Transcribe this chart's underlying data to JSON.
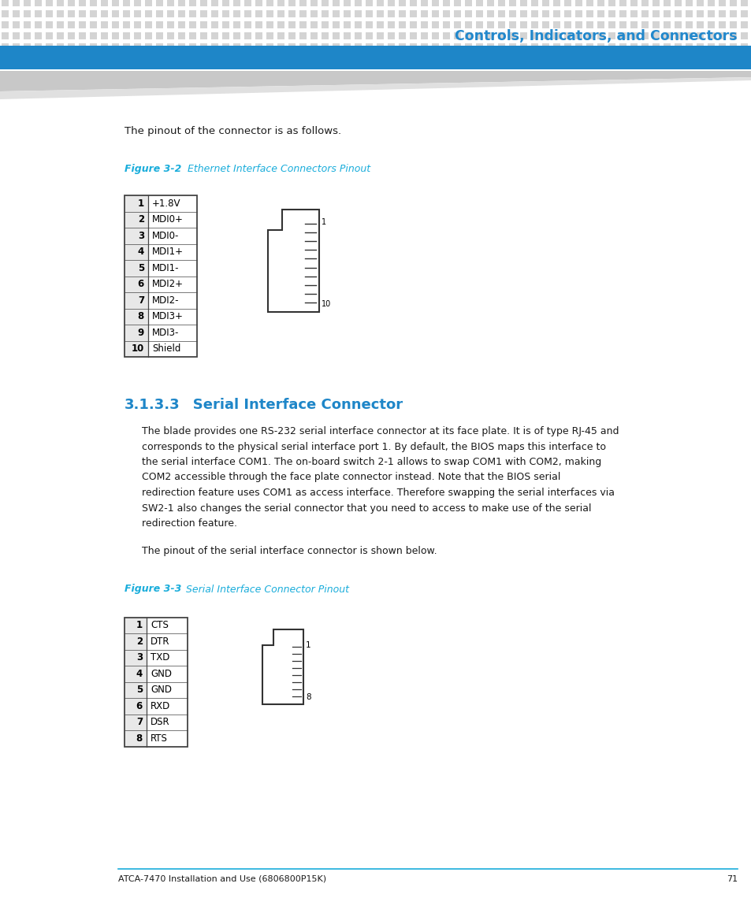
{
  "page_bg": "#ffffff",
  "header_dot_color": "#d4d4d4",
  "header_title": "Controls, Indicators, and Connectors",
  "header_title_color": "#2288cc",
  "header_bar_color": "#1e86c8",
  "body_text_color": "#1a1a1a",
  "figure_caption_color": "#1aaddb",
  "section_heading_color": "#1e86c8",
  "footer_line_color": "#1aaddb",
  "footer_text": "ATCA-7470 Installation and Use (6806800P15K)",
  "footer_page": "71",
  "intro_text": "The pinout of the connector is as follows.",
  "fig2_caption_bold": "Figure 3-2",
  "fig2_caption_rest": "     Ethernet Interface Connectors Pinout",
  "eth_pins": [
    [
      "1",
      "+1.8V"
    ],
    [
      "2",
      "MDI0+"
    ],
    [
      "3",
      "MDI0-"
    ],
    [
      "4",
      "MDI1+"
    ],
    [
      "5",
      "MDI1-"
    ],
    [
      "6",
      "MDI2+"
    ],
    [
      "7",
      "MDI2-"
    ],
    [
      "8",
      "MDI3+"
    ],
    [
      "9",
      "MDI3-"
    ],
    [
      "10",
      "Shield"
    ]
  ],
  "section_num": "3.1.3.3",
  "section_title": "   Serial Interface Connector",
  "section_body_lines": [
    "The blade provides one RS-232 serial interface connector at its face plate. It is of type RJ-45 and",
    "corresponds to the physical serial interface port 1. By default, the BIOS maps this interface to",
    "the serial interface COM1. The on-board switch 2-1 allows to swap COM1 with COM2, making",
    "COM2 accessible through the face plate connector instead. Note that the BIOS serial",
    "redirection feature uses COM1 as access interface. Therefore swapping the serial interfaces via",
    "SW2-1 also changes the serial connector that you need to access to make use of the serial",
    "redirection feature."
  ],
  "serial_intro": "The pinout of the serial interface connector is shown below.",
  "fig3_caption_bold": "Figure 3-3",
  "fig3_caption_rest": "     Serial Interface Connector Pinout",
  "serial_pins": [
    [
      "1",
      "CTS"
    ],
    [
      "2",
      "DTR"
    ],
    [
      "3",
      "TXD"
    ],
    [
      "4",
      "GND"
    ],
    [
      "5",
      "GND"
    ],
    [
      "6",
      "RXD"
    ],
    [
      "7",
      "DSR"
    ],
    [
      "8",
      "RTS"
    ]
  ]
}
